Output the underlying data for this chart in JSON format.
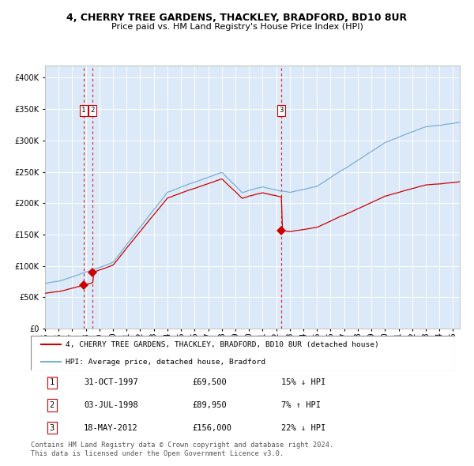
{
  "title": "4, CHERRY TREE GARDENS, THACKLEY, BRADFORD, BD10 8UR",
  "subtitle": "Price paid vs. HM Land Registry's House Price Index (HPI)",
  "red_label": "4, CHERRY TREE GARDENS, THACKLEY, BRADFORD, BD10 8UR (detached house)",
  "blue_label": "HPI: Average price, detached house, Bradford",
  "transactions": [
    {
      "num": 1,
      "date": "31-OCT-1997",
      "price": 69500,
      "pct": "15%",
      "dir": "↓",
      "date_decimal": 1997.833
    },
    {
      "num": 2,
      "date": "03-JUL-1998",
      "price": 89950,
      "pct": "7%",
      "dir": "↑",
      "date_decimal": 1998.5
    },
    {
      "num": 3,
      "date": "18-MAY-2012",
      "price": 156000,
      "pct": "22%",
      "dir": "↓",
      "date_decimal": 2012.375
    }
  ],
  "footer": "Contains HM Land Registry data © Crown copyright and database right 2024.\nThis data is licensed under the Open Government Licence v3.0.",
  "bg_color": "#dce9f8",
  "red_color": "#cc0000",
  "blue_color": "#7bafd4",
  "dashed_color": "#cc0000",
  "ylim": [
    0,
    420000
  ],
  "xlim_start": 1995.0,
  "xlim_end": 2025.5,
  "table_rows": [
    [
      "1",
      "31-OCT-1997",
      "£69,500",
      "15% ↓ HPI"
    ],
    [
      "2",
      "03-JUL-1998",
      "£89,950",
      "7% ↑ HPI"
    ],
    [
      "3",
      "18-MAY-2012",
      "£156,000",
      "22% ↓ HPI"
    ]
  ]
}
